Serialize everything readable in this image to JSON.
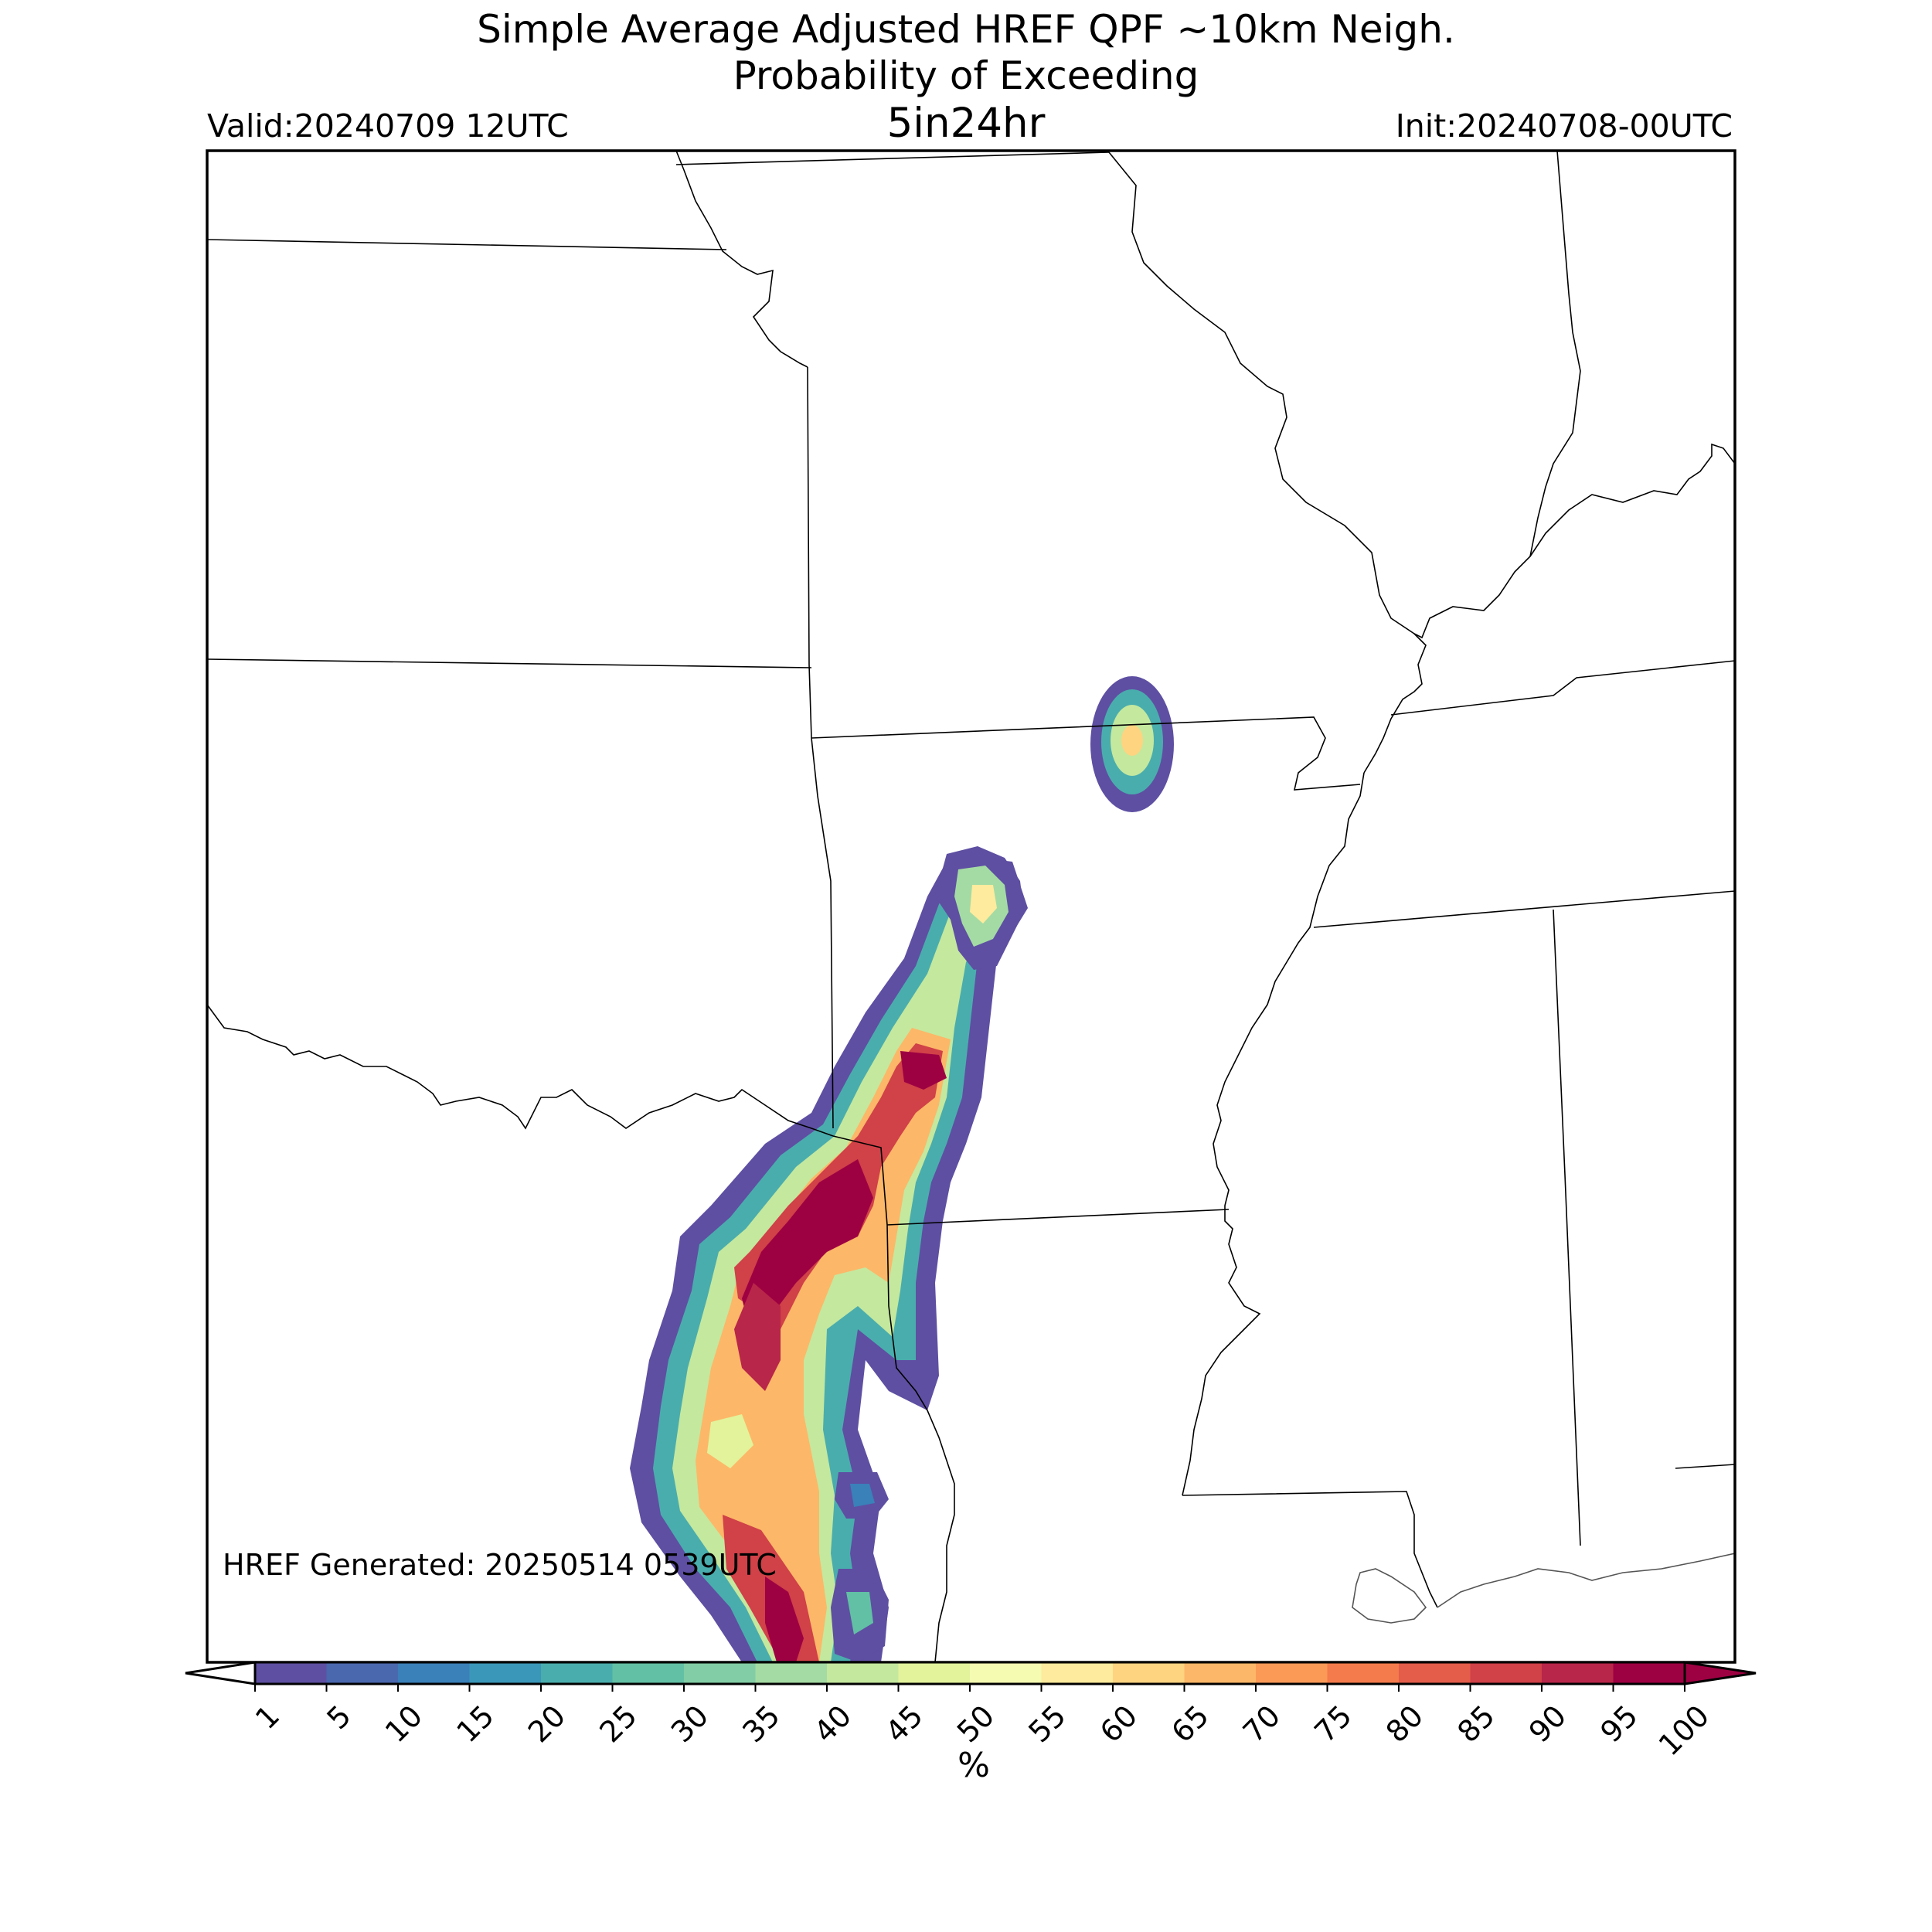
{
  "title": {
    "line1": "Simple Average Adjusted HREF QPF ~10km Neigh.",
    "line2": "Probability of Exceeding",
    "line3": "5in24hr"
  },
  "valid_label": "Valid:20240709 12UTC",
  "init_label": "Init:20240708-00UTC",
  "generated_label": "HREF Generated: 20250514 0539UTC",
  "colorbar": {
    "units": "%",
    "levels": [
      1,
      5,
      10,
      15,
      20,
      25,
      30,
      35,
      40,
      45,
      50,
      55,
      60,
      65,
      70,
      75,
      80,
      85,
      90,
      95,
      100
    ],
    "tick_labels": [
      "1",
      "5",
      "10",
      "15",
      "20",
      "25",
      "30",
      "35",
      "40",
      "45",
      "50",
      "55",
      "60",
      "65",
      "70",
      "75",
      "80",
      "85",
      "90",
      "95",
      "100"
    ],
    "colors": [
      "#5e4fa2",
      "#4a68ae",
      "#3a80b9",
      "#3b97b9",
      "#4aadad",
      "#62c0a5",
      "#82cda5",
      "#a4dba4",
      "#c4e89e",
      "#e2f39b",
      "#f6fbb2",
      "#feeb9d",
      "#fed480",
      "#fdb768",
      "#fb9a57",
      "#f47b4b",
      "#e35d4a",
      "#d04148",
      "#b82649",
      "#9e0142"
    ],
    "extend": "both"
  },
  "map": {
    "region": "South-Central United States",
    "precip_max_percent": 100
  }
}
